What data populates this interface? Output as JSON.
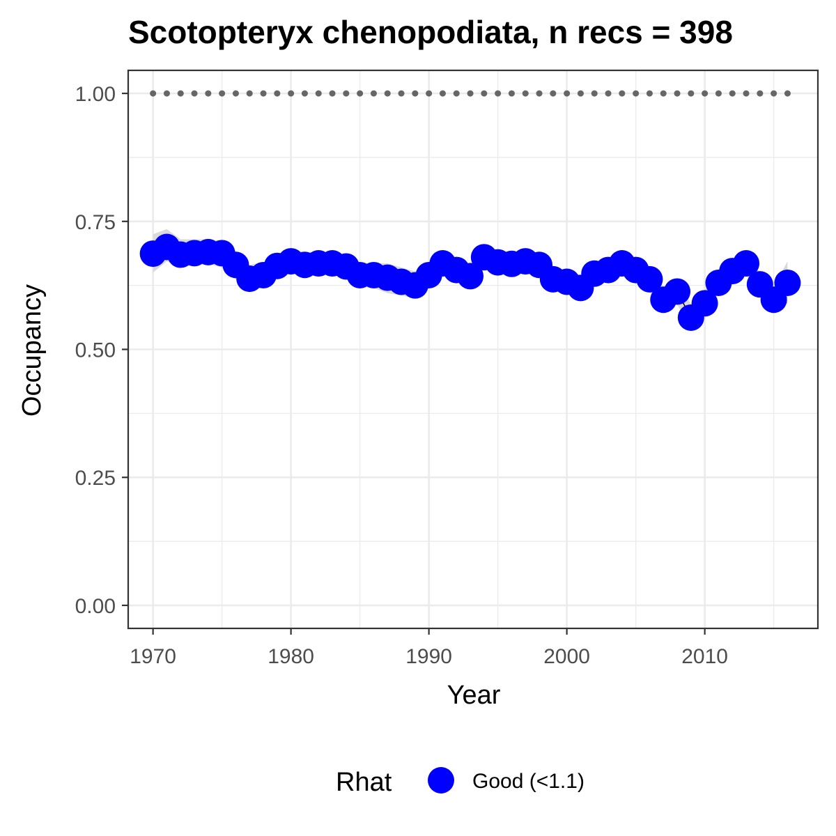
{
  "chart_data": {
    "type": "line",
    "title": "Scotopteryx chenopodiata, n recs = 398",
    "xlabel": "Year",
    "ylabel": "Occupancy",
    "xlim": [
      1968.2,
      2018.2
    ],
    "ylim": [
      -0.045,
      1.045
    ],
    "x_ticks": [
      1970,
      1980,
      1990,
      2000,
      2010
    ],
    "x_tick_labels": [
      "1970",
      "1980",
      "1990",
      "2000",
      "2010"
    ],
    "y_ticks": [
      0,
      0.25,
      0.5,
      0.75,
      1.0
    ],
    "y_tick_labels": [
      "0.00",
      "0.25",
      "0.50",
      "0.75",
      "1.00"
    ],
    "grid": true,
    "legend": {
      "title": "Rhat",
      "position": "bottom",
      "items": [
        {
          "label": "Good (<1.1)",
          "color": "#0000ff"
        }
      ]
    },
    "colors": {
      "points": "#0000ff",
      "line": "#000000",
      "ribbon": "#d9d9d9",
      "reference": "#666666",
      "grid": "#ebebeb",
      "panel_border": "#333333"
    },
    "series": [
      {
        "name": "Occupancy",
        "x": [
          1970,
          1971,
          1972,
          1973,
          1974,
          1975,
          1976,
          1977,
          1978,
          1979,
          1980,
          1981,
          1982,
          1983,
          1984,
          1985,
          1986,
          1987,
          1988,
          1989,
          1990,
          1991,
          1992,
          1993,
          1994,
          1995,
          1996,
          1997,
          1998,
          1999,
          2000,
          2001,
          2002,
          2003,
          2004,
          2005,
          2006,
          2007,
          2008,
          2009,
          2010,
          2011,
          2012,
          2013,
          2014,
          2015,
          2016
        ],
        "y": [
          0.687,
          0.7,
          0.685,
          0.688,
          0.69,
          0.688,
          0.665,
          0.638,
          0.645,
          0.663,
          0.672,
          0.665,
          0.668,
          0.668,
          0.662,
          0.645,
          0.645,
          0.64,
          0.632,
          0.625,
          0.645,
          0.668,
          0.655,
          0.643,
          0.68,
          0.67,
          0.667,
          0.672,
          0.665,
          0.637,
          0.632,
          0.62,
          0.648,
          0.655,
          0.668,
          0.655,
          0.637,
          0.597,
          0.613,
          0.562,
          0.59,
          0.63,
          0.653,
          0.668,
          0.627,
          0.597,
          0.63
        ]
      }
    ],
    "ribbon": {
      "lower": [
        0.65,
        0.672,
        0.66,
        0.665,
        0.667,
        0.66,
        0.637,
        0.612,
        0.622,
        0.643,
        0.651,
        0.647,
        0.65,
        0.647,
        0.64,
        0.622,
        0.62,
        0.61,
        0.605,
        0.6,
        0.625,
        0.645,
        0.635,
        0.625,
        0.658,
        0.652,
        0.647,
        0.65,
        0.645,
        0.618,
        0.613,
        0.6,
        0.625,
        0.633,
        0.645,
        0.632,
        0.613,
        0.575,
        0.588,
        0.54,
        0.568,
        0.61,
        0.632,
        0.645,
        0.605,
        0.575,
        0.59
      ],
      "upper": [
        0.725,
        0.735,
        0.715,
        0.715,
        0.715,
        0.712,
        0.692,
        0.665,
        0.67,
        0.685,
        0.694,
        0.69,
        0.69,
        0.688,
        0.682,
        0.668,
        0.668,
        0.668,
        0.66,
        0.652,
        0.668,
        0.69,
        0.678,
        0.665,
        0.702,
        0.692,
        0.688,
        0.695,
        0.688,
        0.66,
        0.655,
        0.645,
        0.67,
        0.678,
        0.69,
        0.678,
        0.66,
        0.622,
        0.638,
        0.588,
        0.615,
        0.652,
        0.675,
        0.69,
        0.65,
        0.622,
        0.672
      ]
    },
    "reference": {
      "y": 1.0,
      "x": [
        1970,
        1971,
        1972,
        1973,
        1974,
        1975,
        1976,
        1977,
        1978,
        1979,
        1980,
        1981,
        1982,
        1983,
        1984,
        1985,
        1986,
        1987,
        1988,
        1989,
        1990,
        1991,
        1992,
        1993,
        1994,
        1995,
        1996,
        1997,
        1998,
        1999,
        2000,
        2001,
        2002,
        2003,
        2004,
        2005,
        2006,
        2007,
        2008,
        2009,
        2010,
        2011,
        2012,
        2013,
        2014,
        2015,
        2016
      ]
    }
  }
}
